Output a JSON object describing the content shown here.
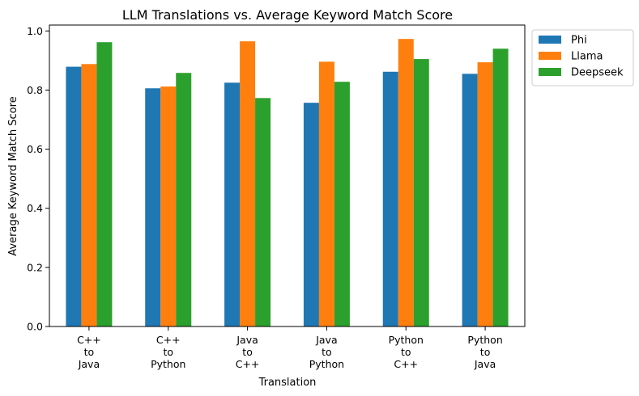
{
  "chart_data": {
    "type": "bar",
    "title": "LLM Translations vs. Average Keyword Match Score",
    "xlabel": "Translation",
    "ylabel": "Average Keyword Match Score",
    "ylim": [
      0,
      1.02
    ],
    "yticks": [
      "0.0",
      "0.2",
      "0.4",
      "0.6",
      "0.8",
      "1.0"
    ],
    "categories": [
      [
        "C++",
        "to",
        "Java"
      ],
      [
        "C++",
        "to",
        "Python"
      ],
      [
        "Java",
        "to",
        "C++"
      ],
      [
        "Java",
        "to",
        "Python"
      ],
      [
        "Python",
        "to",
        "C++"
      ],
      [
        "Python",
        "to",
        "Java"
      ]
    ],
    "series": [
      {
        "name": "Phi",
        "color": "#1f77b4",
        "values": [
          0.879,
          0.806,
          0.825,
          0.757,
          0.862,
          0.855
        ]
      },
      {
        "name": "Llama",
        "color": "#ff7f0e",
        "values": [
          0.888,
          0.812,
          0.965,
          0.896,
          0.973,
          0.894
        ]
      },
      {
        "name": "Deepseek",
        "color": "#2ca02c",
        "values": [
          0.962,
          0.858,
          0.773,
          0.828,
          0.905,
          0.94
        ]
      }
    ],
    "legend_position": "outside-top-right",
    "grid": false
  }
}
